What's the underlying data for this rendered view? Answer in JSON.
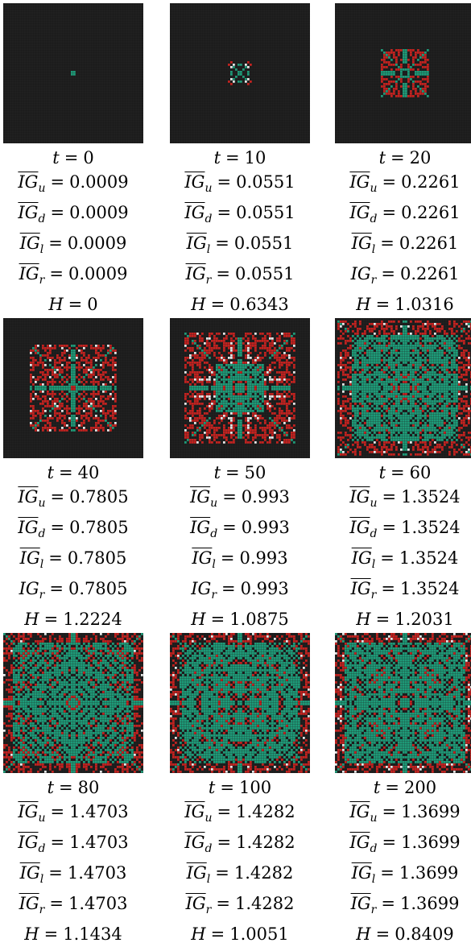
{
  "panels": [
    {
      "t": "0",
      "IGu": "0.0009",
      "IGd": "0.0009",
      "IGl": "0.0009",
      "IGr": "0.0009",
      "H": "0",
      "overline": {
        "u": true,
        "d": true,
        "l": true,
        "r": true
      },
      "spread": 0.03
    },
    {
      "t": "10",
      "IGu": "0.0551",
      "IGd": "0.0551",
      "IGl": "0.0551",
      "IGr": "0.0551",
      "H": "0.6343",
      "overline": {
        "u": true,
        "d": true,
        "l": true,
        "r": true
      },
      "spread": 0.18
    },
    {
      "t": "20",
      "IGu": "0.2261",
      "IGd": "0.2261",
      "IGl": "0.2261",
      "IGr": "0.2261",
      "H": "1.0316",
      "overline": {
        "u": true,
        "d": true,
        "l": true,
        "r": false
      },
      "spread": 0.34
    },
    {
      "t": "40",
      "IGu": "0.7805",
      "IGd": "0.7805",
      "IGl": "0.7805",
      "IGr": "0.7805",
      "H": "1.2224",
      "overline": {
        "u": true,
        "d": true,
        "l": true,
        "r": false
      },
      "spread": 0.63
    },
    {
      "t": "50",
      "IGu": "0.993",
      "IGd": "0.993",
      "IGl": "0.993",
      "IGr": "0.993",
      "H": "1.0875",
      "overline": {
        "u": true,
        "d": true,
        "l": true,
        "r": false
      },
      "spread": 0.78
    },
    {
      "t": "60",
      "IGu": "1.3524",
      "IGd": "1.3524",
      "IGl": "1.3524",
      "IGr": "1.3524",
      "H": "1.2031",
      "overline": {
        "u": true,
        "d": true,
        "l": true,
        "r": true
      },
      "spread": 0.96
    },
    {
      "t": "80",
      "IGu": "1.4703",
      "IGd": "1.4703",
      "IGl": "1.4703",
      "IGr": "1.4703",
      "H": "1.1434",
      "overline": {
        "u": true,
        "d": true,
        "l": true,
        "r": true
      },
      "spread": 1.0
    },
    {
      "t": "100",
      "IGu": "1.4282",
      "IGd": "1.4282",
      "IGl": "1.4282",
      "IGr": "1.4282",
      "H": "1.0051",
      "overline": {
        "u": true,
        "d": true,
        "l": true,
        "r": true
      },
      "spread": 1.0
    },
    {
      "t": "200",
      "IGu": "1.3699",
      "IGd": "1.3699",
      "IGl": "1.3699",
      "IGr": "1.3699",
      "H": "0.8409",
      "overline": {
        "u": true,
        "d": true,
        "l": true,
        "r": true
      },
      "spread": 1.0
    }
  ],
  "colors": {
    "background": "#1a1a1a",
    "grid": "#2b2b2b",
    "red": "#c4221f",
    "green": "#1e9a78",
    "light": "#e8e8e8"
  }
}
